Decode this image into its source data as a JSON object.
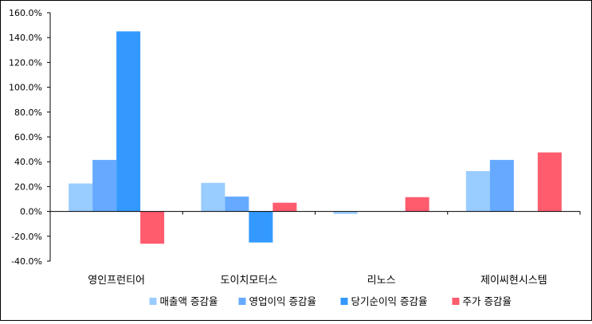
{
  "chart_data": {
    "type": "bar",
    "title": "",
    "xlabel": "",
    "ylabel": "",
    "categories": [
      "영인프런티어",
      "도이치모터스",
      "리노스",
      "제이씨현시스템"
    ],
    "series": [
      {
        "name": "매출액 증감율",
        "color": "#99ccff",
        "values": [
          22.5,
          23.0,
          -2.0,
          32.5
        ]
      },
      {
        "name": "영업이익 증감율",
        "color": "#66aaff",
        "values": [
          41.5,
          12.0,
          0.0,
          41.5
        ]
      },
      {
        "name": "당기순이익 증감율",
        "color": "#3399ff",
        "values": [
          145.0,
          -25.0,
          0.0,
          0.0
        ]
      },
      {
        "name": "주가 증감율",
        "color": "#ff5c6e",
        "values": [
          -26.0,
          7.0,
          11.5,
          47.5
        ]
      }
    ],
    "ylim": [
      -40,
      160
    ],
    "yticks": [
      -40,
      -20,
      0,
      20,
      40,
      60,
      80,
      100,
      120,
      140,
      160
    ],
    "ytick_labels": [
      "-40.0%",
      "-20.0%",
      "0.0%",
      "20.0%",
      "40.0%",
      "60.0%",
      "80.0%",
      "100.0%",
      "120.0%",
      "140.0%",
      "160.0%"
    ],
    "grid": false,
    "legend_position": "bottom"
  }
}
